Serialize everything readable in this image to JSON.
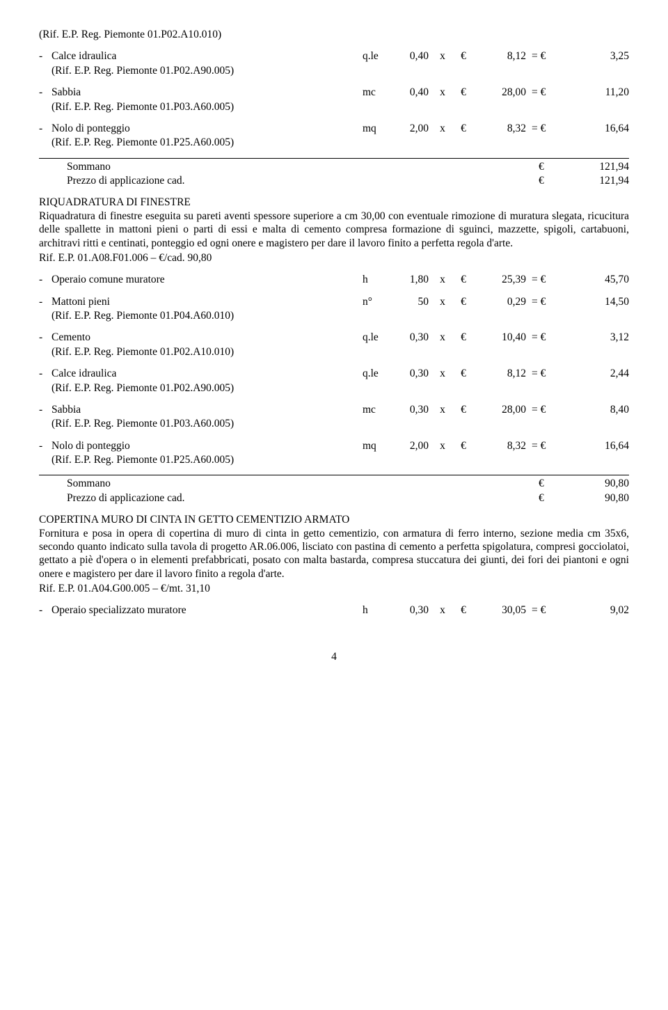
{
  "items_top": [
    {
      "ref_only": true,
      "ref": "(Rif. E.P. Reg. Piemonte 01.P02.A10.010)"
    },
    {
      "dash": "-",
      "desc": "Calce idraulica",
      "unit": "q.le",
      "qty": "0,40",
      "x": "x",
      "eur": "€",
      "price": "8,12",
      "eq": "= €",
      "tot": "3,25",
      "ref": "(Rif. E.P. Reg. Piemonte 01.P02.A90.005)"
    },
    {
      "dash": "-",
      "desc": "Sabbia",
      "unit": "mc",
      "qty": "0,40",
      "x": "x",
      "eur": "€",
      "price": "28,00",
      "eq": "= €",
      "tot": "11,20",
      "ref": "(Rif. E.P. Reg. Piemonte 01.P03.A60.005)"
    },
    {
      "dash": "-",
      "desc": "Nolo di ponteggio",
      "unit": "mq",
      "qty": "2,00",
      "x": "x",
      "eur": "€",
      "price": "8,32",
      "eq": "= €",
      "tot": "16,64",
      "ref": "(Rif. E.P. Reg. Piemonte 01.P25.A60.005)"
    }
  ],
  "sum1": {
    "sommano_label": "Sommano",
    "sommano_eur": "€",
    "sommano_val": "121,94",
    "prezzo_label": "Prezzo di applicazione cad.",
    "prezzo_eur": "€",
    "prezzo_val": "121,94"
  },
  "block2": {
    "title": "RIQUADRATURA DI FINESTRE",
    "para": "Riquadratura di finestre eseguita su pareti aventi spessore superiore a cm 30,00 con eventuale rimozione di muratura slegata, ricucitura delle spallette in mattoni pieni o parti di essi e malta di cemento compresa formazione di sguinci, mazzette, spigoli, cartabuoni, architravi ritti e centinati, ponteggio ed ogni onere e magistero per dare il lavoro finito a perfetta regola d'arte.",
    "ref": "Rif. E.P. 01.A08.F01.006 – €/cad. 90,80"
  },
  "items2": [
    {
      "dash": "-",
      "desc": "Operaio comune muratore",
      "unit": "h",
      "qty": "1,80",
      "x": "x",
      "eur": "€",
      "price": "25,39",
      "eq": "= €",
      "tot": "45,70",
      "no_ref": true
    },
    {
      "dash": "-",
      "desc": "Mattoni pieni",
      "unit": "n°",
      "qty": "50",
      "x": "x",
      "eur": "€",
      "price": "0,29",
      "eq": "= €",
      "tot": "14,50",
      "ref": "(Rif. E.P. Reg. Piemonte 01.P04.A60.010)"
    },
    {
      "dash": "-",
      "desc": "Cemento",
      "unit": "q.le",
      "qty": "0,30",
      "x": "x",
      "eur": "€",
      "price": "10,40",
      "eq": "= €",
      "tot": "3,12",
      "ref": "(Rif. E.P. Reg. Piemonte 01.P02.A10.010)"
    },
    {
      "dash": "-",
      "desc": "Calce idraulica",
      "unit": "q.le",
      "qty": "0,30",
      "x": "x",
      "eur": "€",
      "price": "8,12",
      "eq": "= €",
      "tot": "2,44",
      "ref": "(Rif. E.P. Reg. Piemonte 01.P02.A90.005)"
    },
    {
      "dash": "-",
      "desc": "Sabbia",
      "unit": "mc",
      "qty": "0,30",
      "x": "x",
      "eur": "€",
      "price": "28,00",
      "eq": "= €",
      "tot": "8,40",
      "ref": "(Rif. E.P. Reg. Piemonte 01.P03.A60.005)"
    },
    {
      "dash": "-",
      "desc": "Nolo di ponteggio",
      "unit": "mq",
      "qty": "2,00",
      "x": "x",
      "eur": "€",
      "price": "8,32",
      "eq": "= €",
      "tot": "16,64",
      "ref": "(Rif. E.P. Reg. Piemonte 01.P25.A60.005)"
    }
  ],
  "sum2": {
    "sommano_label": "Sommano",
    "sommano_eur": "€",
    "sommano_val": "90,80",
    "prezzo_label": "Prezzo di applicazione cad.",
    "prezzo_eur": "€",
    "prezzo_val": "90,80"
  },
  "block3": {
    "title": "COPERTINA MURO DI CINTA IN GETTO CEMENTIZIO ARMATO",
    "para": "Fornitura e posa in opera di copertina di muro di cinta in getto cementizio, con armatura di ferro interno, sezione media cm 35x6, secondo quanto indicato sulla tavola di progetto AR.06.006, lisciato con pastina di cemento a perfetta spigolatura, compresi gocciolatoi, gettato a piè d'opera o in elementi prefabbricati, posato con malta bastarda, compresa stuccatura dei giunti, dei fori dei piantoni e ogni onere e magistero per dare il lavoro finito a regola d'arte.",
    "ref": "Rif. E.P. 01.A04.G00.005 – €/mt. 31,10"
  },
  "items3": [
    {
      "dash": "-",
      "desc": "Operaio specializzato muratore",
      "unit": "h",
      "qty": "0,30",
      "x": "x",
      "eur": "€",
      "price": "30,05",
      "eq": "= €",
      "tot": "9,02",
      "no_ref": true
    }
  ],
  "page_num": "4"
}
